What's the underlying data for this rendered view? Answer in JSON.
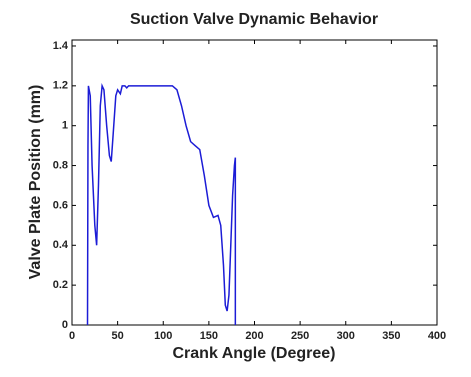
{
  "chart_data": {
    "type": "line",
    "title": "Suction Valve Dynamic Behavior",
    "x_label": "Crank Angle (Degree)",
    "y_label": "Valve Plate Position (mm)",
    "xlim": [
      0,
      400
    ],
    "xticks": [
      0,
      50,
      100,
      150,
      200,
      250,
      300,
      350,
      400
    ],
    "ylim": [
      0,
      1.43
    ],
    "yticks": [
      0,
      0.2,
      0.4,
      0.6,
      0.8,
      1,
      1.2,
      1.4
    ],
    "series": [
      {
        "color": "#1c1cd6",
        "x": [
          17,
          17.5,
          18,
          20,
          22,
          25,
          27,
          29,
          31,
          33,
          35,
          38,
          41,
          43,
          45,
          48,
          50,
          53,
          55,
          58,
          60,
          62,
          110,
          115,
          120,
          125,
          130,
          135,
          140,
          145,
          150,
          155,
          160,
          163,
          166,
          168,
          170,
          172,
          174,
          176,
          178,
          179,
          179
        ],
        "values": [
          0,
          0.9,
          1.2,
          1.15,
          0.8,
          0.5,
          0.4,
          0.7,
          1.1,
          1.2,
          1.18,
          1.0,
          0.85,
          0.82,
          0.95,
          1.15,
          1.18,
          1.16,
          1.2,
          1.2,
          1.19,
          1.2,
          1.2,
          1.18,
          1.1,
          1.0,
          0.92,
          0.9,
          0.88,
          0.75,
          0.6,
          0.54,
          0.55,
          0.5,
          0.3,
          0.1,
          0.07,
          0.15,
          0.4,
          0.65,
          0.8,
          0.84,
          0
        ]
      }
    ]
  }
}
